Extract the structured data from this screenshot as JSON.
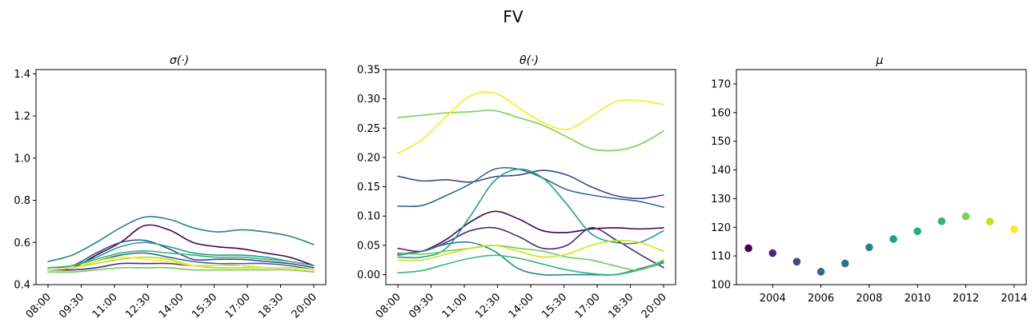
{
  "figure_title": "FV",
  "chart_data": [
    {
      "type": "line",
      "title": "σ(·)",
      "x_tick_labels": [
        "08:00",
        "09:30",
        "11:00",
        "12:30",
        "14:00",
        "15:30",
        "17:00",
        "18:30",
        "20:00"
      ],
      "y_tick_labels": [
        "0.4",
        "0.6",
        "0.8",
        "1.0",
        "1.2",
        "1.4"
      ],
      "ylim": [
        0.4,
        1.42
      ],
      "grid": false,
      "series": [
        {
          "color": "#440154",
          "values": [
            0.47,
            0.48,
            0.54,
            0.6,
            0.68,
            0.66,
            0.6,
            0.58,
            0.57,
            0.55,
            0.53,
            0.49
          ]
        },
        {
          "color": "#482878",
          "values": [
            0.47,
            0.47,
            0.48,
            0.5,
            0.5,
            0.5,
            0.49,
            0.49,
            0.49,
            0.48,
            0.48,
            0.47
          ]
        },
        {
          "color": "#3e4989",
          "values": [
            0.48,
            0.49,
            0.55,
            0.6,
            0.61,
            0.57,
            0.52,
            0.52,
            0.52,
            0.51,
            0.5,
            0.48
          ]
        },
        {
          "color": "#31688e",
          "values": [
            0.47,
            0.48,
            0.51,
            0.54,
            0.55,
            0.53,
            0.51,
            0.5,
            0.5,
            0.5,
            0.49,
            0.47
          ]
        },
        {
          "color": "#26828e",
          "values": [
            0.51,
            0.54,
            0.6,
            0.67,
            0.72,
            0.71,
            0.67,
            0.65,
            0.66,
            0.65,
            0.63,
            0.59
          ]
        },
        {
          "color": "#1f9e89",
          "values": [
            0.48,
            0.49,
            0.53,
            0.58,
            0.6,
            0.58,
            0.55,
            0.54,
            0.54,
            0.53,
            0.51,
            0.49
          ]
        },
        {
          "color": "#35b779",
          "values": [
            0.48,
            0.49,
            0.52,
            0.55,
            0.56,
            0.55,
            0.54,
            0.53,
            0.53,
            0.52,
            0.51,
            0.49
          ]
        },
        {
          "color": "#6ece58",
          "values": [
            0.46,
            0.46,
            0.47,
            0.48,
            0.48,
            0.48,
            0.47,
            0.47,
            0.47,
            0.47,
            0.47,
            0.46
          ]
        },
        {
          "color": "#b5de2b",
          "values": [
            0.47,
            0.48,
            0.5,
            0.52,
            0.53,
            0.52,
            0.49,
            0.48,
            0.48,
            0.48,
            0.48,
            0.47
          ]
        },
        {
          "color": "#fde725",
          "values": [
            0.47,
            0.48,
            0.51,
            0.53,
            0.52,
            0.51,
            0.49,
            0.49,
            0.49,
            0.48,
            0.48,
            0.47
          ]
        }
      ]
    },
    {
      "type": "line",
      "title": "θ(·)",
      "x_tick_labels": [
        "08:00",
        "09:30",
        "11:00",
        "12:30",
        "14:00",
        "15:30",
        "17:00",
        "18:30",
        "20:00"
      ],
      "y_tick_labels": [
        "0.00",
        "0.05",
        "0.10",
        "0.15",
        "0.20",
        "0.25",
        "0.30",
        "0.35"
      ],
      "ylim": [
        -0.017,
        0.35
      ],
      "grid": false,
      "series": [
        {
          "color": "#440154",
          "values": [
            0.036,
            0.04,
            0.06,
            0.09,
            0.108,
            0.095,
            0.075,
            0.072,
            0.078,
            0.08,
            0.078,
            0.08
          ]
        },
        {
          "color": "#482878",
          "values": [
            0.045,
            0.04,
            0.055,
            0.075,
            0.08,
            0.065,
            0.045,
            0.05,
            0.08,
            0.06,
            0.035,
            0.012
          ]
        },
        {
          "color": "#3e4989",
          "values": [
            0.168,
            0.16,
            0.162,
            0.158,
            0.167,
            0.17,
            0.178,
            0.17,
            0.15,
            0.135,
            0.13,
            0.136
          ]
        },
        {
          "color": "#31688e",
          "values": [
            0.117,
            0.118,
            0.135,
            0.155,
            0.18,
            0.18,
            0.165,
            0.145,
            0.136,
            0.13,
            0.125,
            0.115
          ]
        },
        {
          "color": "#26828e",
          "values": [
            0.033,
            0.04,
            0.052,
            0.055,
            0.04,
            0.01,
            0.0,
            0.0,
            0.0,
            0.0,
            0.01,
            0.022
          ]
        },
        {
          "color": "#1f9e89",
          "values": [
            0.03,
            0.03,
            0.045,
            0.1,
            0.16,
            0.18,
            0.165,
            0.12,
            0.07,
            0.055,
            0.055,
            0.075
          ]
        },
        {
          "color": "#35b779",
          "values": [
            0.003,
            0.007,
            0.018,
            0.028,
            0.033,
            0.028,
            0.018,
            0.008,
            0.002,
            0.0,
            0.008,
            0.02
          ]
        },
        {
          "color": "#6ece58",
          "values": [
            0.037,
            0.035,
            0.04,
            0.045,
            0.05,
            0.045,
            0.04,
            0.03,
            0.025,
            0.015,
            0.008,
            0.025
          ]
        },
        {
          "color": "#7ad151",
          "values": [
            0.268,
            0.272,
            0.276,
            0.278,
            0.28,
            0.268,
            0.255,
            0.235,
            0.215,
            0.212,
            0.222,
            0.245
          ]
        },
        {
          "color": "#d2e21b",
          "values": [
            0.025,
            0.025,
            0.035,
            0.045,
            0.05,
            0.04,
            0.03,
            0.035,
            0.05,
            0.058,
            0.055,
            0.04
          ]
        },
        {
          "color": "#fde725",
          "values": [
            0.207,
            0.23,
            0.27,
            0.305,
            0.31,
            0.285,
            0.26,
            0.248,
            0.27,
            0.295,
            0.297,
            0.29
          ]
        }
      ]
    },
    {
      "type": "scatter",
      "title": "μ",
      "x_tick_labels": [
        "2004",
        "2006",
        "2008",
        "2010",
        "2012",
        "2014"
      ],
      "y_tick_labels": [
        "100",
        "110",
        "120",
        "130",
        "140",
        "150",
        "160",
        "170"
      ],
      "xlim": [
        2002.5,
        2014.5
      ],
      "ylim": [
        100,
        175
      ],
      "grid": false,
      "points": [
        {
          "x": 2003,
          "y": 112.7,
          "color": "#440154"
        },
        {
          "x": 2004,
          "y": 111.0,
          "color": "#482878"
        },
        {
          "x": 2005,
          "y": 108.0,
          "color": "#3e4989"
        },
        {
          "x": 2006,
          "y": 104.5,
          "color": "#31688e"
        },
        {
          "x": 2007,
          "y": 107.4,
          "color": "#2c728e"
        },
        {
          "x": 2008,
          "y": 113.0,
          "color": "#26828e"
        },
        {
          "x": 2009,
          "y": 115.9,
          "color": "#1f9e89"
        },
        {
          "x": 2010,
          "y": 118.6,
          "color": "#27ad81"
        },
        {
          "x": 2011,
          "y": 122.1,
          "color": "#35b779"
        },
        {
          "x": 2012,
          "y": 123.8,
          "color": "#7ad151"
        },
        {
          "x": 2013,
          "y": 122.0,
          "color": "#c8e020"
        },
        {
          "x": 2014,
          "y": 119.3,
          "color": "#fde725"
        }
      ]
    }
  ]
}
